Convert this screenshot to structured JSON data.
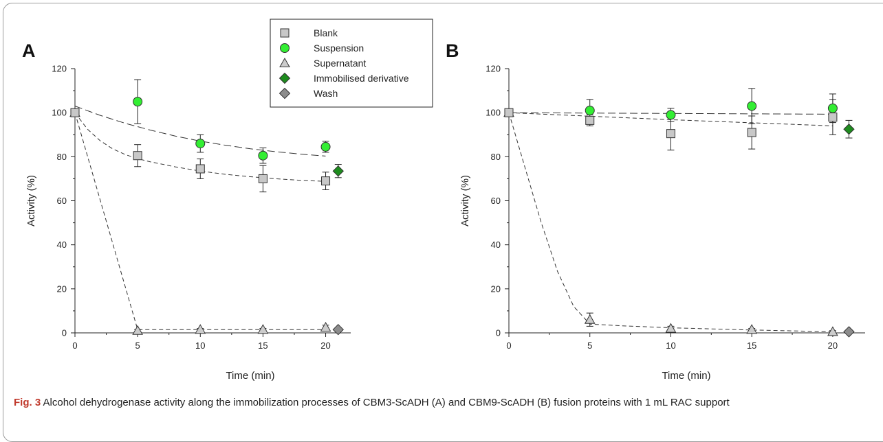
{
  "caption": {
    "label": "Fig. 3",
    "text": "  Alcohol dehydrogenase activity along the immobilization processes of CBM3-ScADH (A) and CBM9-ScADH (B) fusion proteins with 1 mL RAC support"
  },
  "legend": [
    {
      "name": "Blank",
      "marker": "square",
      "color": "#c8c8c8"
    },
    {
      "name": "Suspension",
      "marker": "circle",
      "color": "#33ee33"
    },
    {
      "name": "Supernatant",
      "marker": "triangle",
      "color": "#cccccc"
    },
    {
      "name": "Immobilised derivative",
      "marker": "diamond",
      "color": "#1e8c1e"
    },
    {
      "name": "Wash",
      "marker": "diamond",
      "color": "#8c8c8c"
    }
  ],
  "chart_data": [
    {
      "type": "scatter",
      "panel": "A",
      "xlabel": "Time (min)",
      "ylabel": "Activity (%)",
      "xlim": [
        0,
        22
      ],
      "ylim": [
        0,
        120
      ],
      "xticks": [
        0,
        5,
        10,
        15,
        20
      ],
      "yticks": [
        0,
        20,
        40,
        60,
        80,
        100,
        120
      ],
      "series": [
        {
          "name": "Blank",
          "marker": "square",
          "x": [
            0,
            5,
            10,
            15,
            20
          ],
          "y": [
            100,
            80.5,
            74.5,
            70,
            69
          ],
          "err": [
            0,
            5,
            4.5,
            6,
            4
          ]
        },
        {
          "name": "Suspension",
          "marker": "circle",
          "x": [
            5,
            10,
            15,
            20
          ],
          "y": [
            105,
            86,
            80.5,
            84.5
          ],
          "err": [
            10,
            4,
            3.5,
            2.5
          ]
        },
        {
          "name": "Supernatant",
          "marker": "triangle",
          "x": [
            0,
            5,
            10,
            15,
            20
          ],
          "y": [
            100,
            1,
            1.5,
            1.5,
            2.5
          ],
          "err": [
            0,
            0.5,
            0.5,
            0.5,
            1
          ]
        },
        {
          "name": "Immobilised derivative",
          "marker": "diamond",
          "x": [
            21
          ],
          "y": [
            73.5
          ],
          "err": [
            3
          ]
        },
        {
          "name": "Wash",
          "marker": "diamond",
          "x": [
            21
          ],
          "y": [
            1.5
          ],
          "err": [
            0
          ]
        }
      ],
      "fits": [
        {
          "series": "Suspension",
          "style": "long-dash",
          "x": [
            0,
            2,
            4,
            6,
            8,
            10,
            12,
            14,
            16,
            18,
            20
          ],
          "y": [
            103,
            98.8,
            95.2,
            92.1,
            89.4,
            87.1,
            85.2,
            83.6,
            82.3,
            81.2,
            80.3
          ]
        },
        {
          "series": "Blank",
          "style": "short-dash",
          "x": [
            0,
            1,
            2,
            3,
            4,
            5,
            6,
            8,
            10,
            12,
            14,
            16,
            18,
            20
          ],
          "y": [
            100,
            92.5,
            87.3,
            83.6,
            81,
            79.1,
            77.7,
            75.4,
            73.5,
            72,
            70.9,
            70,
            69.3,
            68.8
          ]
        },
        {
          "series": "Supernatant",
          "style": "short-dash",
          "x": [
            0,
            5,
            20
          ],
          "y": [
            100,
            1.5,
            1.5
          ]
        }
      ]
    },
    {
      "type": "scatter",
      "panel": "B",
      "xlabel": "Time (min)",
      "ylabel": "Activity (%)",
      "xlim": [
        0,
        22
      ],
      "ylim": [
        0,
        120
      ],
      "xticks": [
        0,
        5,
        10,
        15,
        20
      ],
      "yticks": [
        0,
        20,
        40,
        60,
        80,
        100,
        120
      ],
      "series": [
        {
          "name": "Blank",
          "marker": "square",
          "x": [
            0,
            5,
            10,
            15,
            20
          ],
          "y": [
            100,
            96.5,
            90.5,
            91,
            98
          ],
          "err": [
            0,
            2.5,
            7.5,
            7.5,
            8
          ]
        },
        {
          "name": "Suspension",
          "marker": "circle",
          "x": [
            5,
            10,
            15,
            20
          ],
          "y": [
            101,
            99,
            103,
            102
          ],
          "err": [
            5,
            3,
            8,
            6.5
          ]
        },
        {
          "name": "Supernatant",
          "marker": "triangle",
          "x": [
            0,
            5,
            10,
            15,
            20
          ],
          "y": [
            100,
            6,
            2,
            1.5,
            0.5
          ],
          "err": [
            0,
            3,
            1,
            0.5,
            0.5
          ]
        },
        {
          "name": "Immobilised derivative",
          "marker": "diamond",
          "x": [
            21
          ],
          "y": [
            92.5
          ],
          "err": [
            4
          ]
        },
        {
          "name": "Wash",
          "marker": "diamond",
          "x": [
            21
          ],
          "y": [
            0.5
          ],
          "err": [
            0
          ]
        }
      ],
      "fits": [
        {
          "series": "Suspension",
          "style": "long-dash",
          "x": [
            0,
            20
          ],
          "y": [
            100,
            99.3
          ]
        },
        {
          "series": "Blank",
          "style": "short-dash",
          "x": [
            0,
            5,
            10,
            15,
            20
          ],
          "y": [
            100,
            98.4,
            96.8,
            95.4,
            94
          ]
        },
        {
          "series": "Supernatant",
          "style": "short-dash",
          "x": [
            0,
            1,
            2,
            3,
            4,
            5,
            7,
            10,
            15,
            20
          ],
          "y": [
            100,
            75,
            50,
            28,
            12,
            4,
            3.2,
            2.3,
            1.3,
            0.5
          ]
        }
      ]
    }
  ]
}
